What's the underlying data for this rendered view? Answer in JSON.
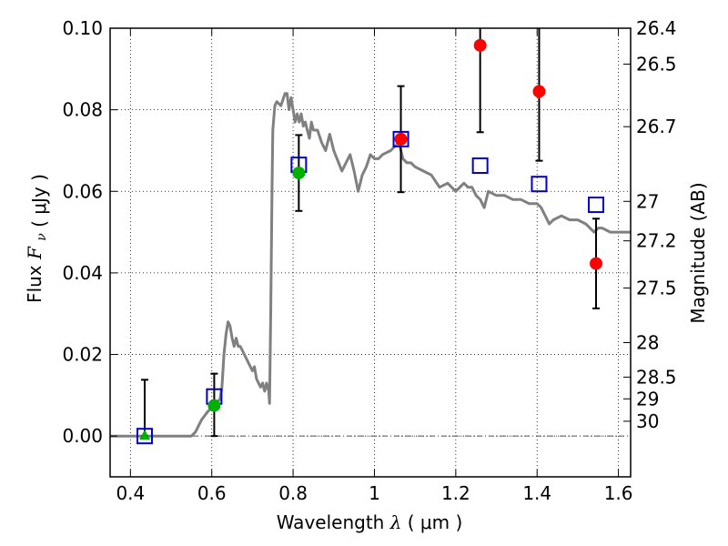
{
  "chart_data": {
    "type": "scatter",
    "xlabel": {
      "main": "Wavelength",
      "symbol": "λ",
      "unit_open": "(",
      "unit": "μm",
      "unit_close": ")"
    },
    "ylabel": {
      "main": "Flux",
      "symbol": "F",
      "subscript": "ν",
      "unit_open": "(",
      "unit": "μJy",
      "unit_close": ")"
    },
    "y2label": "Magnitude (AB)",
    "xlim": [
      0.35,
      1.63
    ],
    "ylim": [
      -0.01,
      0.1
    ],
    "xticks": [
      0.4,
      0.6,
      0.8,
      1.0,
      1.2,
      1.4,
      1.6
    ],
    "xtick_labels": [
      "0.4",
      "0.6",
      "0.8",
      "1",
      "1.2",
      "1.4",
      "1.6"
    ],
    "yticks": [
      0.0,
      0.02,
      0.04,
      0.06,
      0.08,
      0.1
    ],
    "ytick_labels": [
      "0.00",
      "0.02",
      "0.04",
      "0.06",
      "0.08",
      "0.10"
    ],
    "mag_ticks": [
      26.4,
      26.5,
      26.7,
      27,
      27.2,
      27.5,
      28,
      28.5,
      29,
      30
    ],
    "mag_tick_labels": [
      "26.4",
      "26.5",
      "26.7",
      "27",
      "27.2",
      "27.5",
      "28",
      "28.5",
      "29",
      "30"
    ],
    "grid": true,
    "colors": {
      "model_line": "#808080",
      "model_points": "#0000cc",
      "detections": "#ff0000",
      "optical": "#00b000",
      "errorbar": "#000000",
      "zero_line": "#555555"
    },
    "model_sed": {
      "x": [
        0.35,
        0.55,
        0.56,
        0.575,
        0.59,
        0.6,
        0.61,
        0.62,
        0.625,
        0.63,
        0.635,
        0.64,
        0.645,
        0.65,
        0.655,
        0.66,
        0.665,
        0.67,
        0.68,
        0.69,
        0.7,
        0.705,
        0.71,
        0.72,
        0.725,
        0.73,
        0.735,
        0.74,
        0.742,
        0.745,
        0.748,
        0.75,
        0.755,
        0.76,
        0.77,
        0.78,
        0.785,
        0.79,
        0.795,
        0.8,
        0.805,
        0.81,
        0.815,
        0.82,
        0.825,
        0.83,
        0.835,
        0.84,
        0.845,
        0.85,
        0.86,
        0.87,
        0.88,
        0.89,
        0.9,
        0.92,
        0.94,
        0.95,
        0.96,
        0.97,
        0.98,
        0.99,
        1.0,
        1.01,
        1.02,
        1.04,
        1.06,
        1.07,
        1.08,
        1.09,
        1.1,
        1.12,
        1.14,
        1.16,
        1.18,
        1.2,
        1.22,
        1.23,
        1.24,
        1.25,
        1.26,
        1.27,
        1.28,
        1.3,
        1.32,
        1.34,
        1.36,
        1.38,
        1.4,
        1.41,
        1.42,
        1.43,
        1.44,
        1.46,
        1.48,
        1.5,
        1.52,
        1.54,
        1.55,
        1.56,
        1.58,
        1.6,
        1.63
      ],
      "y": [
        0.0,
        0.0,
        0.001,
        0.004,
        0.006,
        0.007,
        0.008,
        0.009,
        0.012,
        0.02,
        0.025,
        0.028,
        0.027,
        0.024,
        0.022,
        0.024,
        0.022,
        0.022,
        0.02,
        0.018,
        0.016,
        0.017,
        0.014,
        0.012,
        0.013,
        0.011,
        0.013,
        0.011,
        0.008,
        0.03,
        0.06,
        0.075,
        0.081,
        0.082,
        0.081,
        0.084,
        0.084,
        0.08,
        0.083,
        0.08,
        0.077,
        0.079,
        0.077,
        0.079,
        0.076,
        0.077,
        0.075,
        0.073,
        0.077,
        0.075,
        0.075,
        0.072,
        0.07,
        0.074,
        0.07,
        0.065,
        0.069,
        0.065,
        0.06,
        0.064,
        0.066,
        0.069,
        0.068,
        0.068,
        0.069,
        0.07,
        0.072,
        0.068,
        0.067,
        0.067,
        0.066,
        0.065,
        0.064,
        0.061,
        0.062,
        0.06,
        0.062,
        0.061,
        0.061,
        0.059,
        0.058,
        0.056,
        0.06,
        0.059,
        0.059,
        0.058,
        0.058,
        0.057,
        0.057,
        0.056,
        0.054,
        0.052,
        0.053,
        0.054,
        0.053,
        0.053,
        0.052,
        0.05,
        0.051,
        0.051,
        0.05,
        0.05,
        0.05
      ]
    },
    "model_points": {
      "x": [
        0.435,
        0.606,
        0.814,
        1.065,
        1.26,
        1.405,
        1.545
      ],
      "y": [
        0.0,
        0.0097,
        0.0665,
        0.0728,
        0.0663,
        0.0618,
        0.0567
      ]
    },
    "optical_upper": {
      "x": [
        0.435
      ],
      "y": [
        0.0
      ],
      "err_high": [
        0.0138
      ]
    },
    "optical_detections": {
      "x": [
        0.606,
        0.814
      ],
      "y": [
        0.0075,
        0.0645
      ],
      "err_low": [
        0.0075,
        0.0093
      ],
      "err_high": [
        0.0078,
        0.0093
      ]
    },
    "nir_detections": {
      "x": [
        1.065,
        1.26,
        1.405,
        1.545
      ],
      "y": [
        0.0728,
        0.0958,
        0.0845,
        0.0423
      ],
      "err_low": [
        0.013,
        0.0213,
        0.017,
        0.011
      ],
      "err_high": [
        0.013,
        0.0213,
        0.017,
        0.011
      ]
    }
  }
}
